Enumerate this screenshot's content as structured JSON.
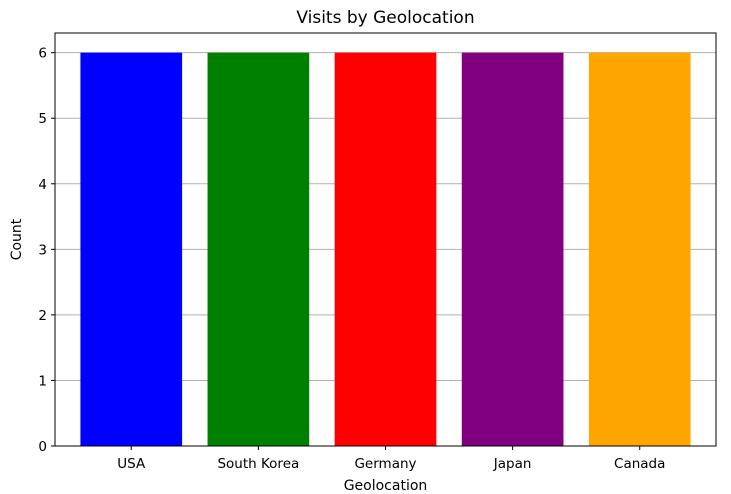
{
  "chart_data": {
    "type": "bar",
    "title": "Visits by Geolocation",
    "xlabel": "Geolocation",
    "ylabel": "Count",
    "categories": [
      "USA",
      "South Korea",
      "Germany",
      "Japan",
      "Canada"
    ],
    "values": [
      6,
      6,
      6,
      6,
      6
    ],
    "colors": [
      "#0000ff",
      "#008000",
      "#ff0000",
      "#800080",
      "#ffa500"
    ],
    "ylim": [
      0,
      6.3
    ],
    "yticks": [
      "0",
      "1",
      "2",
      "3",
      "4",
      "5",
      "6"
    ],
    "grid": {
      "y": true,
      "x": false,
      "color": "#b0b0b0"
    },
    "legend": "none"
  }
}
